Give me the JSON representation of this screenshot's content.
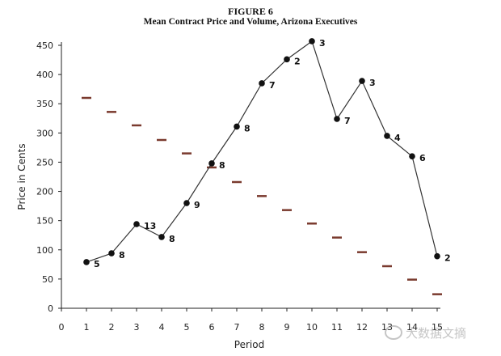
{
  "figure": {
    "number": "FIGURE 6",
    "title": "Mean Contract Price and Volume, Arizona Executives"
  },
  "watermark": {
    "text": "大数据文摘",
    "icon": "wechat-icon"
  },
  "chart_data": {
    "type": "line",
    "title": "Mean Contract Price and Volume, Arizona Executives",
    "xlabel": "Period",
    "ylabel": "Price in Cents",
    "xlim": [
      0,
      15
    ],
    "ylim": [
      0,
      450
    ],
    "x_ticks": [
      0,
      1,
      2,
      3,
      4,
      5,
      6,
      7,
      8,
      9,
      10,
      11,
      12,
      13,
      14,
      15
    ],
    "y_ticks": [
      0,
      50,
      100,
      150,
      200,
      250,
      300,
      350,
      400,
      450
    ],
    "grid": false,
    "legend": "none",
    "series": [
      {
        "kind": "line-with-markers",
        "color": "#111111",
        "x": [
          1,
          2,
          3,
          4,
          5,
          6,
          7,
          8,
          9,
          10,
          11,
          12,
          13,
          14,
          15
        ],
        "y": [
          79,
          94,
          144,
          122,
          180,
          248,
          311,
          385,
          426,
          457,
          324,
          389,
          295,
          260,
          89
        ],
        "labels": [
          "5",
          "8",
          "13",
          "8",
          "9",
          "8",
          "8",
          "7",
          "2",
          "3",
          "7",
          "3",
          "4",
          "6",
          "2"
        ]
      },
      {
        "kind": "dash-markers",
        "color": "#7a3a2e",
        "x": [
          1,
          2,
          3,
          4,
          5,
          6,
          7,
          8,
          9,
          10,
          11,
          12,
          13,
          14,
          15
        ],
        "y": [
          360,
          336,
          313,
          288,
          265,
          241,
          216,
          192,
          168,
          145,
          121,
          96,
          72,
          49,
          24
        ]
      }
    ]
  }
}
